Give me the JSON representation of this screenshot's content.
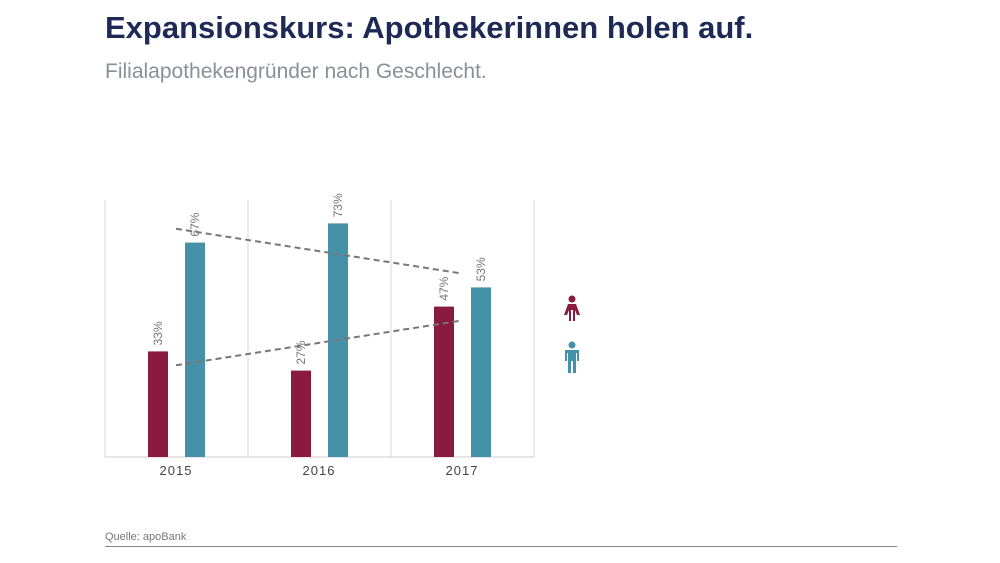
{
  "header": {
    "title": "Expansionskurs: Apothekerinnen holen auf.",
    "subtitle": "Filialapothekengründer nach Geschlecht."
  },
  "footer": {
    "source": "Quelle: apoBank"
  },
  "chart_data": {
    "type": "bar",
    "title": "Expansionskurs: Apothekerinnen holen auf.",
    "subtitle": "Filialapothekengründer nach Geschlecht.",
    "categories": [
      "2015",
      "2016",
      "2017"
    ],
    "series": [
      {
        "name": "Frauen",
        "icon": "female-icon",
        "color": "#8a1a40",
        "values": [
          33,
          27,
          47
        ],
        "labels": [
          "33%",
          "27%",
          "47%"
        ]
      },
      {
        "name": "Männer",
        "icon": "male-icon",
        "color": "#4691aa",
        "values": [
          67,
          73,
          53
        ],
        "labels": [
          "67%",
          "73%",
          "53%"
        ]
      }
    ],
    "trendlines": "dashed linear trend per series",
    "ylim": [
      0,
      80
    ],
    "grid": "vertical separators",
    "legend": "right (icons)"
  }
}
